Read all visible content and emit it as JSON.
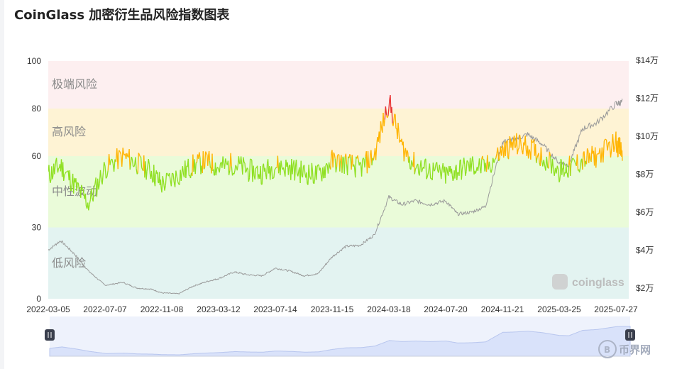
{
  "page": {
    "title": "CoinGlass 加密衍生品风险指数图表"
  },
  "watermarks": {
    "brand": "coinglass",
    "site": "币界网"
  },
  "colors": {
    "extreme_zone": "#fdeff0",
    "high_zone": "#fef3d4",
    "neutral_zone": "#eafbd9",
    "low_zone": "#e3f3f1",
    "risk_green": "#8ee020",
    "risk_orange": "#ffb400",
    "risk_red": "#e83030",
    "price_line": "#9a9a9a",
    "navigator_fill": "#d9e2fa",
    "navigator_bg": "#eef2fc"
  },
  "chart_data": {
    "type": "line",
    "title": "CoinGlass 加密衍生品风险指数图表",
    "x_tick_labels": [
      "2022-03-05",
      "2022-07-07",
      "2022-11-08",
      "2023-03-12",
      "2023-07-14",
      "2023-11-15",
      "2024-03-18",
      "2024-07-20",
      "2024-11-21",
      "2025-03-25",
      "2025-07-27"
    ],
    "left_axis": {
      "ticks": [
        0,
        30,
        60,
        80,
        100
      ],
      "range": [
        0,
        100
      ]
    },
    "right_axis": {
      "tick_labels": [
        "$2万",
        "$4万",
        "$6万",
        "$8万",
        "$10万",
        "$12万",
        "$14万"
      ],
      "values": [
        20000,
        40000,
        60000,
        80000,
        100000,
        120000,
        140000
      ],
      "range": [
        17500,
        140000
      ]
    },
    "zones": [
      {
        "label": "极端风险",
        "from": 80,
        "to": 100
      },
      {
        "label": "高风险",
        "from": 60,
        "to": 80
      },
      {
        "label": "中性波动",
        "from": 30,
        "to": 60
      },
      {
        "label": "低风险",
        "from": 0,
        "to": 30
      }
    ],
    "series": [
      {
        "dates": [
          "2022-03-05",
          "2022-04-01",
          "2022-05-01",
          "2022-06-01",
          "2022-07-07",
          "2022-08-15",
          "2022-09-15",
          "2022-10-15",
          "2022-11-08",
          "2022-12-15",
          "2023-01-15",
          "2023-02-15",
          "2023-03-12",
          "2023-04-15",
          "2023-05-15",
          "2023-06-15",
          "2023-07-14",
          "2023-08-15",
          "2023-09-15",
          "2023-10-15",
          "2023-11-15",
          "2023-12-15",
          "2024-01-15",
          "2024-02-15",
          "2024-03-18",
          "2024-04-15",
          "2024-05-15",
          "2024-06-15",
          "2024-07-20",
          "2024-08-15",
          "2024-09-15",
          "2024-10-15",
          "2024-11-21",
          "2024-12-15",
          "2025-01-15",
          "2025-02-15",
          "2025-03-25",
          "2025-04-15",
          "2025-05-15",
          "2025-06-15",
          "2025-07-27",
          "2025-08-10"
        ],
        "values": [
          52,
          56,
          48,
          40,
          55,
          60,
          57,
          54,
          48,
          52,
          56,
          58,
          55,
          57,
          54,
          53,
          56,
          55,
          53,
          52,
          58,
          57,
          55,
          60,
          83,
          64,
          56,
          54,
          52,
          54,
          56,
          55,
          62,
          65,
          64,
          60,
          54,
          55,
          58,
          60,
          66,
          61
        ]
      },
      {
        "dates": [
          "2022-03-05",
          "2022-04-01",
          "2022-05-01",
          "2022-06-01",
          "2022-07-07",
          "2022-08-15",
          "2022-09-15",
          "2022-10-15",
          "2022-11-08",
          "2022-12-15",
          "2023-01-15",
          "2023-02-15",
          "2023-03-12",
          "2023-04-15",
          "2023-05-15",
          "2023-06-15",
          "2023-07-14",
          "2023-08-15",
          "2023-09-15",
          "2023-10-15",
          "2023-11-15",
          "2023-12-15",
          "2024-01-15",
          "2024-02-15",
          "2024-03-18",
          "2024-04-15",
          "2024-05-15",
          "2024-06-15",
          "2024-07-20",
          "2024-08-15",
          "2024-09-15",
          "2024-10-15",
          "2024-11-21",
          "2024-12-15",
          "2025-01-15",
          "2025-02-15",
          "2025-03-25",
          "2025-04-15",
          "2025-05-15",
          "2025-06-15",
          "2025-07-27",
          "2025-08-10"
        ],
        "values": [
          40000,
          45000,
          38000,
          29000,
          21500,
          23000,
          20000,
          19500,
          17500,
          17000,
          21000,
          23500,
          25000,
          28500,
          27000,
          26500,
          30500,
          29000,
          26500,
          27500,
          36500,
          42000,
          42500,
          48000,
          68000,
          64000,
          66000,
          64000,
          66000,
          59000,
          60000,
          63000,
          97000,
          98000,
          101000,
          96000,
          86000,
          85000,
          104000,
          107000,
          117000,
          118000
        ]
      }
    ]
  }
}
